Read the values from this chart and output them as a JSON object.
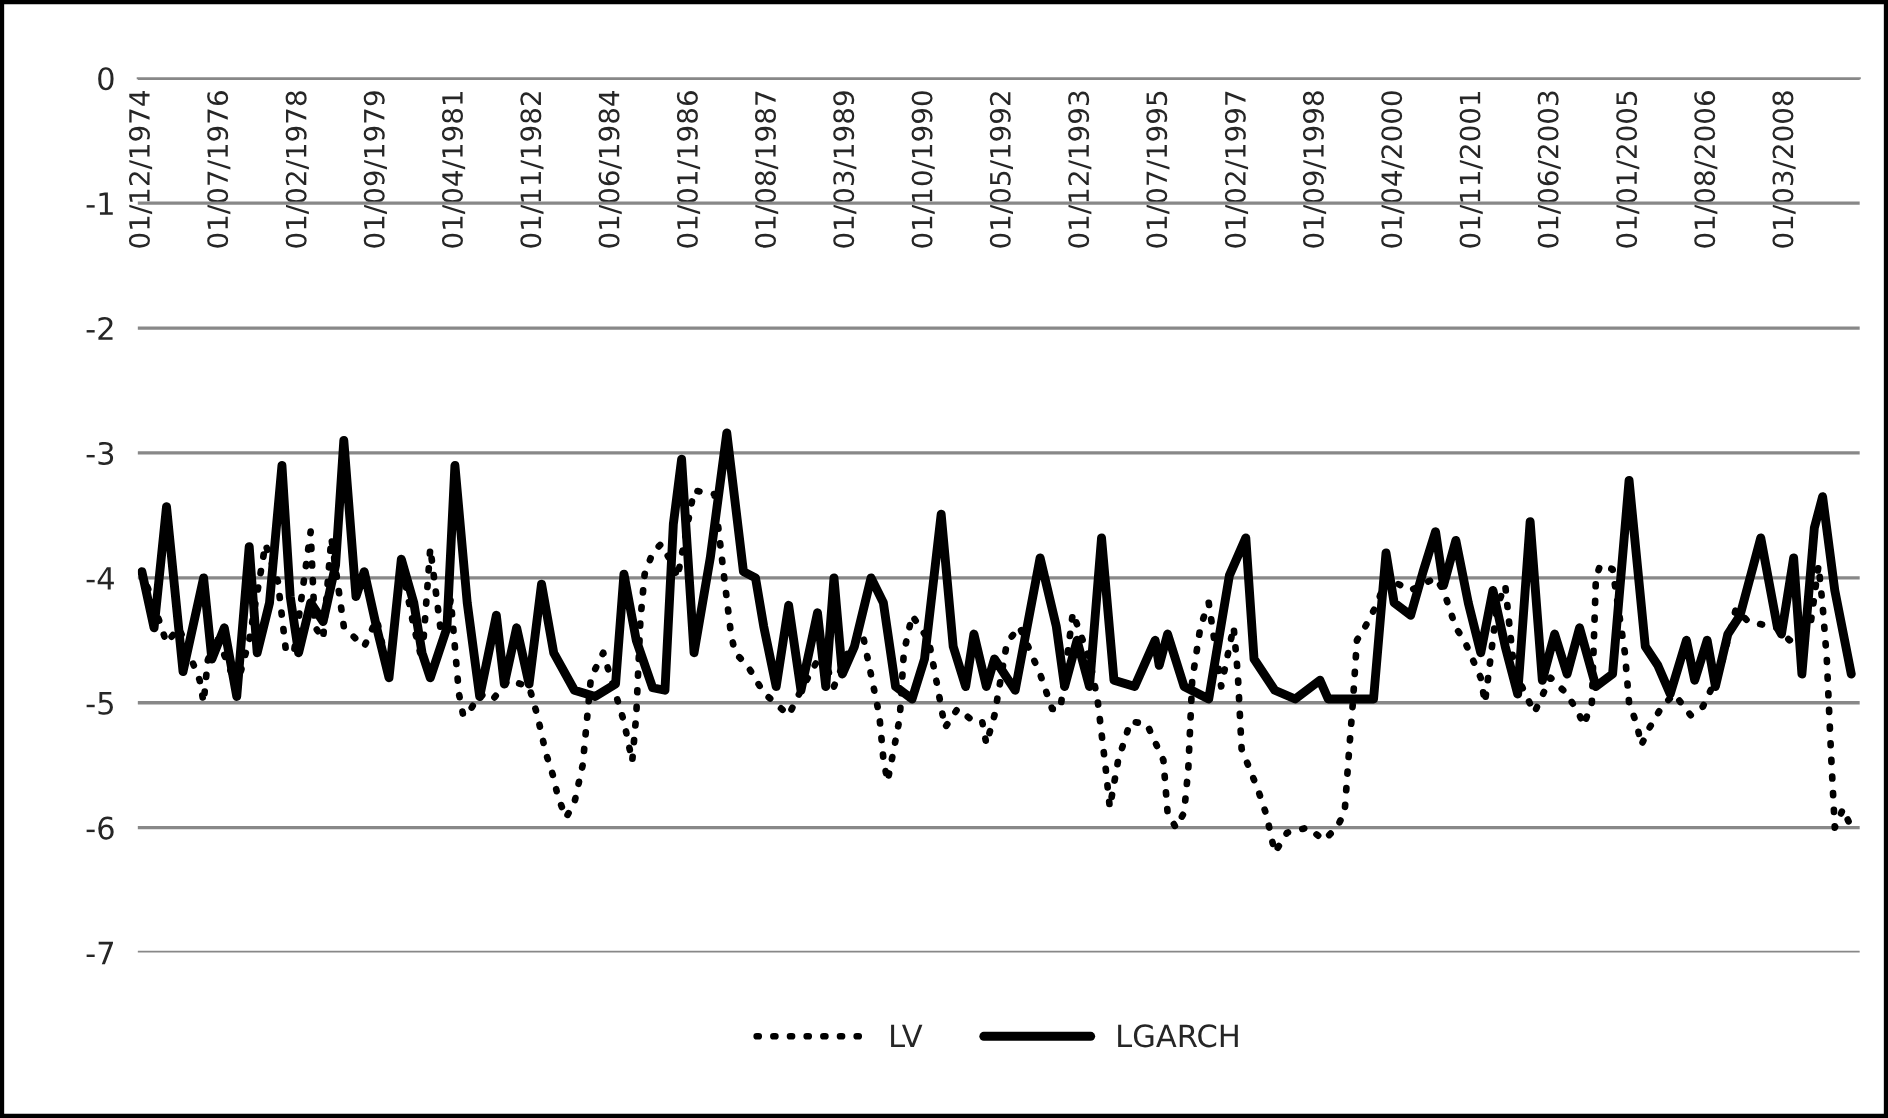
{
  "chart_data": {
    "type": "line",
    "series": [
      {
        "name": "LV",
        "color": "#000000",
        "line_style": "dotted",
        "x": [
          "1974-12",
          "1975-03",
          "1975-06",
          "1975-09",
          "1975-12",
          "1976-02",
          "1976-03",
          "1976-04",
          "1976-06",
          "1976-11",
          "1977-02",
          "1977-06",
          "1977-09",
          "1977-11",
          "1978-01",
          "1978-05",
          "1978-06",
          "1978-08",
          "1978-10",
          "1979-01",
          "1979-04",
          "1979-06",
          "1979-09",
          "1979-12",
          "1980-03",
          "1980-06",
          "1980-08",
          "1980-10",
          "1981-01",
          "1981-03",
          "1981-05",
          "1981-06",
          "1981-07",
          "1981-10",
          "1982-01",
          "1982-05",
          "1982-10",
          "1982-12",
          "1983-02",
          "1983-04",
          "1983-05",
          "1983-07",
          "1983-09",
          "1983-11",
          "1984-01",
          "1984-04",
          "1984-09",
          "1984-11",
          "1984-12",
          "1985-01",
          "1985-02",
          "1985-04",
          "1985-06",
          "1985-09",
          "1985-10",
          "1986-02",
          "1986-07",
          "1986-09",
          "1986-11",
          "1986-12",
          "1987-03",
          "1987-07",
          "1988-01",
          "1988-04",
          "1988-09",
          "1988-12",
          "1989-04",
          "1989-07",
          "1989-11",
          "1989-12",
          "1990-01",
          "1990-03",
          "1990-04",
          "1990-05",
          "1990-07",
          "1990-11",
          "1991-01",
          "1991-03",
          "1991-06",
          "1991-10",
          "1991-12",
          "1992-01",
          "1992-03",
          "1992-06",
          "1992-09",
          "1993-02",
          "1993-05",
          "1993-07",
          "1993-10",
          "1994-02",
          "1994-04",
          "1994-06",
          "1994-07",
          "1994-09",
          "1994-12",
          "1995-04",
          "1995-08",
          "1995-09",
          "1995-11",
          "1996-01",
          "1996-02",
          "1996-03",
          "1996-05",
          "1996-07",
          "1996-10",
          "1997-01",
          "1997-02",
          "1997-03",
          "1997-07",
          "1997-09",
          "1997-11",
          "1998-02",
          "1998-07",
          "1998-11",
          "1999-02",
          "1999-04",
          "1999-05",
          "1999-06",
          "1999-07",
          "1999-09",
          "1999-12",
          "2000-02",
          "2000-08",
          "2001-02",
          "2001-04",
          "2001-07",
          "2001-09",
          "2002-01",
          "2002-02",
          "2002-05",
          "2002-07",
          "2002-09",
          "2002-11",
          "2003-02",
          "2003-06",
          "2003-10",
          "2004-01",
          "2004-02",
          "2004-04",
          "2004-05",
          "2004-06",
          "2004-09",
          "2004-12",
          "2005-01",
          "2005-03",
          "2005-04",
          "2005-06",
          "2005-09",
          "2005-12",
          "2006-04",
          "2006-07",
          "2006-11",
          "2007-03",
          "2007-06",
          "2008-01",
          "2008-04",
          "2008-09",
          "2008-11",
          "2008-12",
          "2009-01",
          "2009-02",
          "2009-03",
          "2009-05",
          "2009-07"
        ],
        "values": [
          -3.95,
          -4.22,
          -4.52,
          -4.4,
          -4.65,
          -4.82,
          -5.0,
          -4.66,
          -4.45,
          -4.87,
          -4.5,
          -3.73,
          -4.03,
          -4.6,
          -4.57,
          -3.63,
          -4.39,
          -4.49,
          -3.68,
          -4.39,
          -4.49,
          -4.55,
          -4.33,
          -4.77,
          -3.89,
          -4.39,
          -4.66,
          -3.76,
          -4.55,
          -4.17,
          -4.93,
          -5.1,
          -5.1,
          -4.93,
          -4.98,
          -4.82,
          -4.87,
          -5.1,
          -5.4,
          -5.6,
          -5.75,
          -5.92,
          -5.8,
          -5.5,
          -4.8,
          -4.6,
          -5.15,
          -5.47,
          -5.1,
          -4.33,
          -3.97,
          -3.8,
          -3.73,
          -3.9,
          -4.0,
          -3.3,
          -3.33,
          -3.9,
          -4.45,
          -4.6,
          -4.7,
          -4.92,
          -5.1,
          -4.9,
          -4.6,
          -4.87,
          -4.55,
          -4.45,
          -5.1,
          -5.45,
          -5.63,
          -5.3,
          -5.12,
          -4.6,
          -4.3,
          -4.5,
          -4.85,
          -5.2,
          -5.05,
          -5.15,
          -5.15,
          -5.33,
          -5.1,
          -4.52,
          -4.39,
          -4.77,
          -5.05,
          -5.05,
          -4.28,
          -4.65,
          -4.97,
          -5.53,
          -5.84,
          -5.46,
          -5.15,
          -5.17,
          -5.46,
          -5.88,
          -6.0,
          -5.88,
          -5.53,
          -4.82,
          -4.39,
          -4.2,
          -4.87,
          -4.39,
          -4.77,
          -5.37,
          -5.7,
          -5.9,
          -6.2,
          -6.04,
          -6.0,
          -6.1,
          -6.0,
          -5.88,
          -5.43,
          -5.0,
          -4.5,
          -4.39,
          -4.2,
          -4.0,
          -4.1,
          -4.0,
          -4.1,
          -4.4,
          -4.5,
          -4.8,
          -5.0,
          -4.23,
          -4.06,
          -4.7,
          -4.87,
          -5.08,
          -4.8,
          -4.93,
          -5.1,
          -5.18,
          -5.0,
          -4.0,
          -3.9,
          -3.93,
          -4.6,
          -5.0,
          -5.18,
          -5.34,
          -5.2,
          -5.03,
          -4.93,
          -5.1,
          -5.03,
          -4.75,
          -4.25,
          -4.35,
          -4.4,
          -4.5,
          -4.39,
          -3.9,
          -4.22,
          -4.65,
          -5.4,
          -6.0,
          -5.85,
          -6.0
        ]
      },
      {
        "name": "LGARCH",
        "color": "#000000",
        "line_style": "solid",
        "x": [
          "1974-12",
          "1975-03",
          "1975-06",
          "1975-10",
          "1976-03",
          "1976-05",
          "1976-08",
          "1976-11",
          "1977-02",
          "1977-04",
          "1977-07",
          "1977-10",
          "1977-12",
          "1978-02",
          "1978-05",
          "1978-08",
          "1978-11",
          "1979-01",
          "1979-04",
          "1979-06",
          "1979-09",
          "1979-12",
          "1980-03",
          "1980-06",
          "1980-08",
          "1980-10",
          "1981-02",
          "1981-04",
          "1981-07",
          "1981-10",
          "1982-02",
          "1982-04",
          "1982-07",
          "1982-10",
          "1983-01",
          "1983-04",
          "1983-09",
          "1984-02",
          "1984-07",
          "1984-09",
          "1984-12",
          "1985-04",
          "1985-07",
          "1985-09",
          "1985-11",
          "1986-02",
          "1986-06",
          "1986-10",
          "1987-02",
          "1987-05",
          "1987-07",
          "1987-10",
          "1988-01",
          "1988-04",
          "1988-08",
          "1988-10",
          "1988-12",
          "1989-02",
          "1989-05",
          "1989-09",
          "1989-12",
          "1990-03",
          "1990-07",
          "1990-10",
          "1991-02",
          "1991-05",
          "1991-08",
          "1991-10",
          "1992-01",
          "1992-03",
          "1992-08",
          "1993-02",
          "1993-06",
          "1993-08",
          "1993-11",
          "1994-02",
          "1994-05",
          "1994-08",
          "1995-01",
          "1995-06",
          "1995-07",
          "1995-09",
          "1996-01",
          "1996-07",
          "1996-12",
          "1997-04",
          "1997-06",
          "1997-11",
          "1998-04",
          "1998-10",
          "1998-12",
          "1999-07",
          "1999-11",
          "2000-02",
          "2000-04",
          "2000-08",
          "2000-11",
          "2001-02",
          "2001-04",
          "2001-07",
          "2001-10",
          "2002-01",
          "2002-04",
          "2002-07",
          "2002-10",
          "2003-01",
          "2003-04",
          "2003-07",
          "2003-10",
          "2004-01",
          "2004-05",
          "2004-09",
          "2005-01",
          "2005-05",
          "2005-08",
          "2005-11",
          "2006-03",
          "2006-05",
          "2006-08",
          "2006-10",
          "2007-01",
          "2007-04",
          "2007-09",
          "2008-01",
          "2008-02",
          "2008-05",
          "2008-07",
          "2008-10",
          "2008-12",
          "2009-03",
          "2009-07"
        ],
        "values": [
          -3.95,
          -4.4,
          -3.43,
          -4.75,
          -4.0,
          -4.65,
          -4.4,
          -4.95,
          -3.75,
          -4.6,
          -4.2,
          -3.1,
          -4.15,
          -4.6,
          -4.2,
          -4.35,
          -3.9,
          -2.9,
          -4.15,
          -3.95,
          -4.4,
          -4.8,
          -3.85,
          -4.2,
          -4.6,
          -4.8,
          -4.4,
          -3.1,
          -4.2,
          -4.95,
          -4.3,
          -4.85,
          -4.4,
          -4.85,
          -4.05,
          -4.6,
          -4.9,
          -4.95,
          -4.85,
          -3.97,
          -4.5,
          -4.88,
          -4.9,
          -3.57,
          -3.05,
          -4.6,
          -3.84,
          -2.84,
          -3.95,
          -4.0,
          -4.39,
          -4.87,
          -4.22,
          -4.9,
          -4.28,
          -4.87,
          -4.0,
          -4.77,
          -4.55,
          -4.0,
          -4.2,
          -4.87,
          -4.97,
          -4.65,
          -3.49,
          -4.55,
          -4.87,
          -4.45,
          -4.87,
          -4.65,
          -4.9,
          -3.84,
          -4.39,
          -4.87,
          -4.5,
          -4.87,
          -3.68,
          -4.82,
          -4.87,
          -4.5,
          -4.7,
          -4.45,
          -4.87,
          -4.97,
          -3.98,
          -3.68,
          -4.65,
          -4.9,
          -4.97,
          -4.82,
          -4.97,
          -4.97,
          -4.97,
          -3.8,
          -4.2,
          -4.3,
          -3.95,
          -3.63,
          -4.06,
          -3.7,
          -4.2,
          -4.6,
          -4.1,
          -4.55,
          -4.93,
          -3.55,
          -4.82,
          -4.45,
          -4.77,
          -4.4,
          -4.87,
          -4.77,
          -3.22,
          -4.55,
          -4.7,
          -4.93,
          -4.5,
          -4.82,
          -4.5,
          -4.87,
          -4.45,
          -4.3,
          -3.68,
          -4.39,
          -4.45,
          -3.84,
          -4.77,
          -3.6,
          -3.35,
          -4.1,
          -4.77
        ]
      }
    ],
    "xlim": [
      "1974-11",
      "2009-09"
    ],
    "xticks": [
      {
        "value": "1974-12-01",
        "label": "01/12/1974"
      },
      {
        "value": "1976-07-01",
        "label": "01/07/1976"
      },
      {
        "value": "1978-02-01",
        "label": "01/02/1978"
      },
      {
        "value": "1979-09-01",
        "label": "01/09/1979"
      },
      {
        "value": "1981-04-01",
        "label": "01/04/1981"
      },
      {
        "value": "1982-11-01",
        "label": "01/11/1982"
      },
      {
        "value": "1984-06-01",
        "label": "01/06/1984"
      },
      {
        "value": "1986-01-01",
        "label": "01/01/1986"
      },
      {
        "value": "1987-08-01",
        "label": "01/08/1987"
      },
      {
        "value": "1989-03-01",
        "label": "01/03/1989"
      },
      {
        "value": "1990-10-01",
        "label": "01/10/1990"
      },
      {
        "value": "1992-05-01",
        "label": "01/05/1992"
      },
      {
        "value": "1993-12-01",
        "label": "01/12/1993"
      },
      {
        "value": "1995-07-01",
        "label": "01/07/1995"
      },
      {
        "value": "1997-02-01",
        "label": "01/02/1997"
      },
      {
        "value": "1998-09-01",
        "label": "01/09/1998"
      },
      {
        "value": "2000-04-01",
        "label": "01/04/2000"
      },
      {
        "value": "2001-11-01",
        "label": "01/11/2001"
      },
      {
        "value": "2003-06-01",
        "label": "01/06/2003"
      },
      {
        "value": "2005-01-01",
        "label": "01/01/2005"
      },
      {
        "value": "2006-08-01",
        "label": "01/08/2006"
      },
      {
        "value": "2008-03-01",
        "label": "01/03/2008"
      }
    ],
    "ylim": [
      -7,
      0
    ],
    "yticks": [
      0,
      -1,
      -2,
      -3,
      -4,
      -5,
      -6,
      -7
    ],
    "grid": "y",
    "legend": "bottom",
    "marker": "none"
  }
}
